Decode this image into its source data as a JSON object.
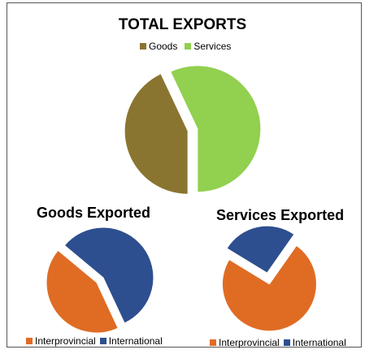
{
  "chart_data": [
    {
      "type": "pie",
      "title": "TOTAL EXPORTS",
      "categories": [
        "Goods",
        "Services"
      ],
      "values": [
        43,
        57
      ],
      "colors": [
        "#8a7530",
        "#92d050"
      ],
      "exploded": [
        true,
        true
      ],
      "legend_position": "top"
    },
    {
      "type": "pie",
      "title": "Goods Exported",
      "categories": [
        "Interprovincial",
        "International"
      ],
      "values": [
        43,
        57
      ],
      "colors": [
        "#e06c24",
        "#2e4f8f"
      ],
      "exploded": [
        true,
        true
      ],
      "legend_position": "bottom"
    },
    {
      "type": "pie",
      "title": "Services Exported",
      "categories": [
        "Interprovincial",
        "International"
      ],
      "values": [
        74,
        26
      ],
      "colors": [
        "#e06c24",
        "#2e4f8f"
      ],
      "exploded": [
        true,
        true
      ],
      "legend_position": "bottom"
    }
  ]
}
